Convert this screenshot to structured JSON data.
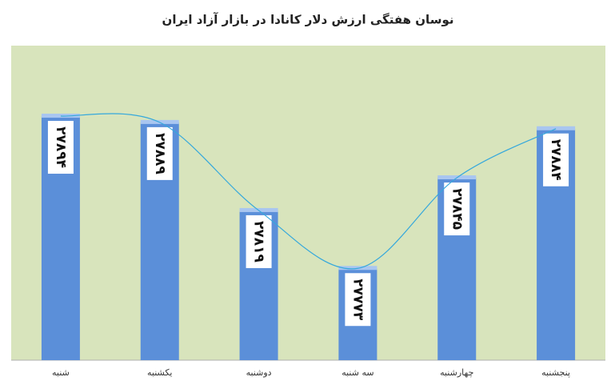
{
  "chart_data": {
    "type": "bar",
    "title": "نوسان هفتگی ارزش دلار کانادا در بازار آزاد ایران",
    "categories": [
      "شنبه",
      "یکشنبه",
      "دوشنبه",
      "سه شنبه",
      "چهارشنبه",
      "پنجشنبه"
    ],
    "values": [
      27894,
      27889,
      27819,
      27773,
      27845,
      27884
    ],
    "value_labels": [
      "۲۷۸۹۴",
      "۲۷۸۸۹",
      "۲۷۸۱۹",
      "۲۷۷۷۳",
      "۲۷۸۴۵",
      "۲۷۸۸۴"
    ],
    "color": "#5b8fd9",
    "ylim": [
      27700,
      27950
    ],
    "smooth_line": true,
    "line_color": "#35a8dc",
    "plot_background": "#d8e4bc"
  }
}
